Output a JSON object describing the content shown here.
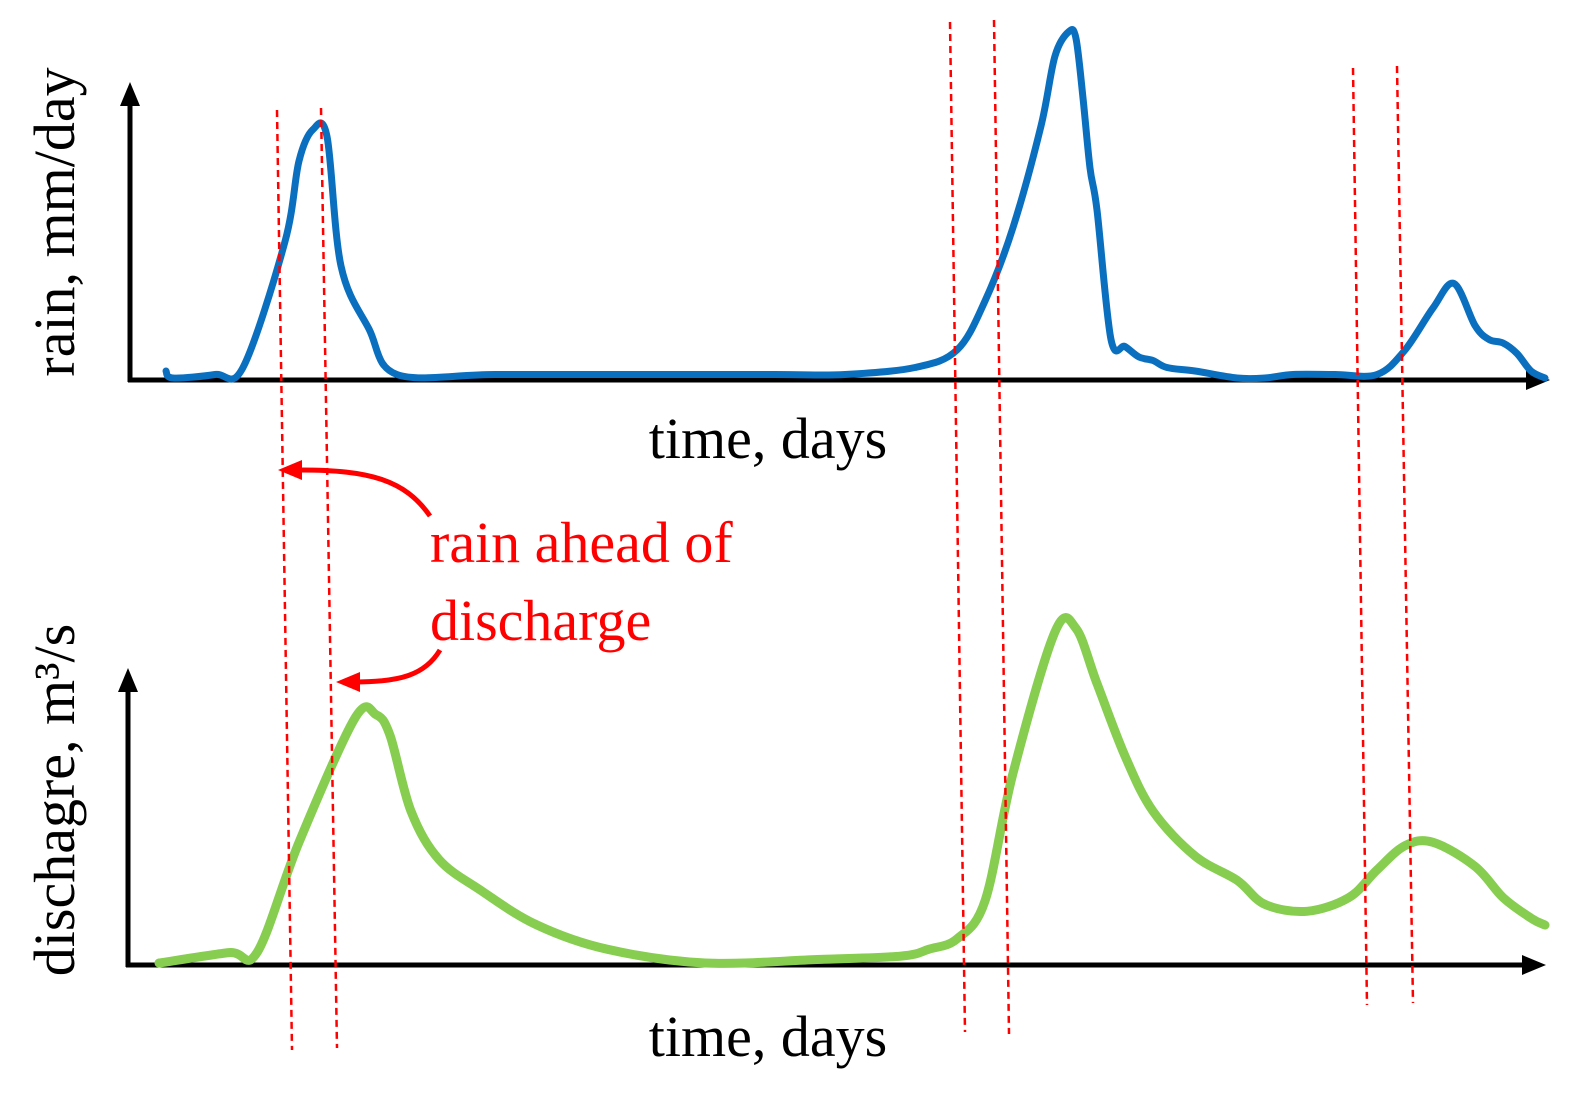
{
  "chart_data": [
    {
      "type": "line",
      "title": "",
      "xlabel": "time, days",
      "ylabel": "rain, mm/day",
      "x_ticks": "none",
      "y_ticks": "none",
      "grid": false,
      "xlim": [
        0,
        100
      ],
      "ylim": [
        0,
        100
      ],
      "series": [
        {
          "color": "#0b6fbf",
          "x": [
            1.5,
            2,
            5,
            7,
            10,
            11,
            12,
            13,
            14,
            16,
            18,
            25,
            35,
            45,
            50,
            55,
            58,
            60,
            62,
            64,
            65,
            66,
            66.5,
            67,
            67.5,
            68,
            69,
            70,
            71,
            72,
            73,
            75,
            78,
            80,
            82,
            85,
            88,
            90,
            92,
            93.5,
            95,
            96,
            97,
            98,
            99,
            100
          ],
          "y": [
            2,
            0,
            1,
            3,
            39,
            62,
            71,
            69,
            32,
            14,
            1,
            1,
            1,
            1,
            1,
            3,
            8,
            22,
            43,
            72,
            92,
            99,
            97,
            80,
            60,
            48,
            11,
            9,
            6,
            5,
            3,
            2,
            0,
            0,
            1,
            1,
            1,
            8,
            20,
            27,
            15,
            11,
            10,
            7,
            2,
            0
          ]
        }
      ]
    },
    {
      "type": "line",
      "title": "",
      "xlabel": "time, days",
      "ylabel": "dischagre, m³/s",
      "x_ticks": "none",
      "y_ticks": "none",
      "grid": false,
      "xlim": [
        0,
        100
      ],
      "ylim": [
        0,
        100
      ],
      "series": [
        {
          "color": "#86cd50",
          "x": [
            1,
            6,
            8,
            11,
            15,
            16.5,
            17.5,
            19,
            21,
            24,
            28,
            33,
            40,
            48,
            54,
            56,
            58,
            60,
            62,
            65,
            66.5,
            68,
            70,
            72,
            75,
            78,
            80,
            83,
            86,
            88,
            90,
            92,
            95,
            97,
            99,
            100
          ],
          "y": [
            0,
            3,
            3,
            35,
            71,
            72,
            66,
            44,
            30,
            21,
            11,
            4,
            0,
            1,
            2,
            4,
            7,
            18,
            55,
            96,
            97,
            81,
            60,
            44,
            31,
            24,
            17,
            15,
            19,
            27,
            34,
            35,
            28,
            19,
            13,
            11
          ]
        }
      ]
    }
  ],
  "annotation": {
    "lines": [
      "rain ahead of",
      "discharge"
    ],
    "color": "#ff0000"
  },
  "colors": {
    "axis": "#000000",
    "guide_line": "#ff0000"
  }
}
